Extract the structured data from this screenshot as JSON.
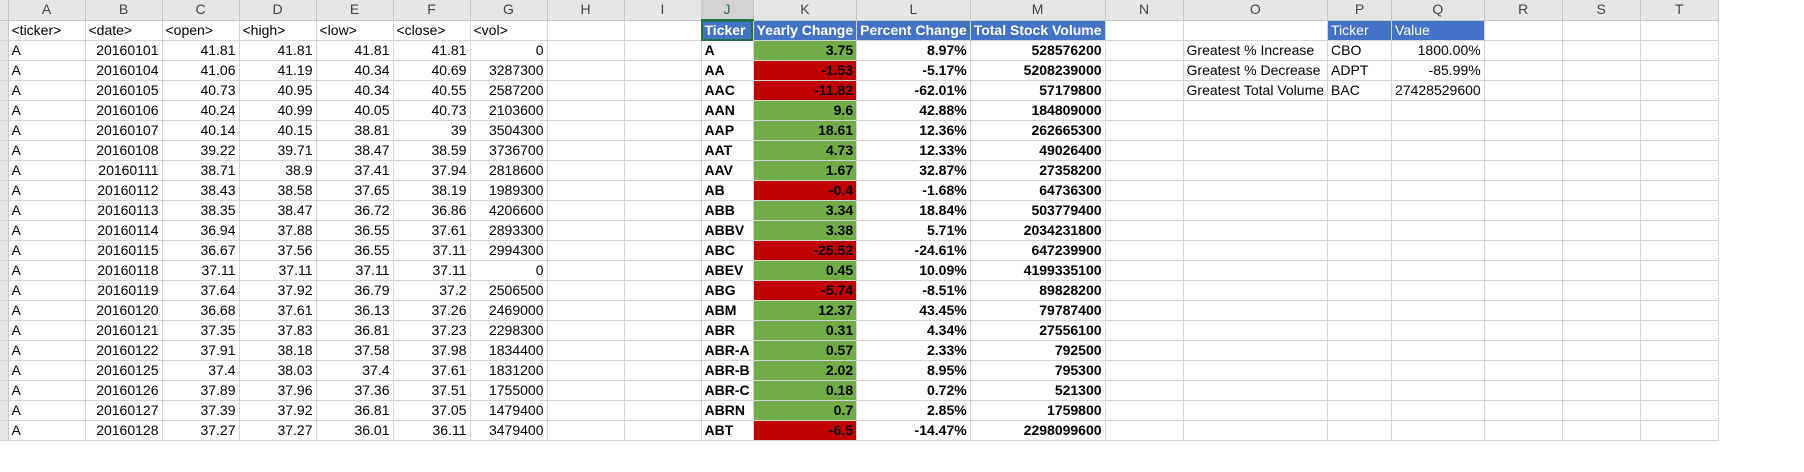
{
  "columns": [
    "A",
    "B",
    "C",
    "D",
    "E",
    "F",
    "G",
    "H",
    "I",
    "J",
    "K",
    "L",
    "M",
    "N",
    "O",
    "P",
    "Q",
    "R",
    "S",
    "T"
  ],
  "raw_headers": [
    "<ticker>",
    "<date>",
    "<open>",
    "<high>",
    "<low>",
    "<close>",
    "<vol>"
  ],
  "raw_rows": [
    [
      "A",
      "20160101",
      "41.81",
      "41.81",
      "41.81",
      "41.81",
      "0"
    ],
    [
      "A",
      "20160104",
      "41.06",
      "41.19",
      "40.34",
      "40.69",
      "3287300"
    ],
    [
      "A",
      "20160105",
      "40.73",
      "40.95",
      "40.34",
      "40.55",
      "2587200"
    ],
    [
      "A",
      "20160106",
      "40.24",
      "40.99",
      "40.05",
      "40.73",
      "2103600"
    ],
    [
      "A",
      "20160107",
      "40.14",
      "40.15",
      "38.81",
      "39",
      "3504300"
    ],
    [
      "A",
      "20160108",
      "39.22",
      "39.71",
      "38.47",
      "38.59",
      "3736700"
    ],
    [
      "A",
      "20160111",
      "38.71",
      "38.9",
      "37.41",
      "37.94",
      "2818600"
    ],
    [
      "A",
      "20160112",
      "38.43",
      "38.58",
      "37.65",
      "38.19",
      "1989300"
    ],
    [
      "A",
      "20160113",
      "38.35",
      "38.47",
      "36.72",
      "36.86",
      "4206600"
    ],
    [
      "A",
      "20160114",
      "36.94",
      "37.88",
      "36.55",
      "37.61",
      "2893300"
    ],
    [
      "A",
      "20160115",
      "36.67",
      "37.56",
      "36.55",
      "37.11",
      "2994300"
    ],
    [
      "A",
      "20160118",
      "37.11",
      "37.11",
      "37.11",
      "37.11",
      "0"
    ],
    [
      "A",
      "20160119",
      "37.64",
      "37.92",
      "36.79",
      "37.2",
      "2506500"
    ],
    [
      "A",
      "20160120",
      "36.68",
      "37.61",
      "36.13",
      "37.26",
      "2469000"
    ],
    [
      "A",
      "20160121",
      "37.35",
      "37.83",
      "36.81",
      "37.23",
      "2298300"
    ],
    [
      "A",
      "20160122",
      "37.91",
      "38.18",
      "37.58",
      "37.98",
      "1834400"
    ],
    [
      "A",
      "20160125",
      "37.4",
      "38.03",
      "37.4",
      "37.61",
      "1831200"
    ],
    [
      "A",
      "20160126",
      "37.89",
      "37.96",
      "37.36",
      "37.51",
      "1755000"
    ],
    [
      "A",
      "20160127",
      "37.39",
      "37.92",
      "36.81",
      "37.05",
      "1479400"
    ],
    [
      "A",
      "20160128",
      "37.27",
      "37.27",
      "36.01",
      "36.11",
      "3479400"
    ]
  ],
  "summary_headers": [
    "Ticker",
    "Yearly Change",
    "Percent Change",
    "Total Stock Volume"
  ],
  "summary_rows": [
    [
      "A",
      "3.75",
      "8.97%",
      "528576200"
    ],
    [
      "AA",
      "-1.53",
      "-5.17%",
      "5208239000"
    ],
    [
      "AAC",
      "-11.82",
      "-62.01%",
      "57179800"
    ],
    [
      "AAN",
      "9.6",
      "42.88%",
      "184809000"
    ],
    [
      "AAP",
      "18.61",
      "12.36%",
      "262665300"
    ],
    [
      "AAT",
      "4.73",
      "12.33%",
      "49026400"
    ],
    [
      "AAV",
      "1.67",
      "32.87%",
      "27358200"
    ],
    [
      "AB",
      "-0.4",
      "-1.68%",
      "64736300"
    ],
    [
      "ABB",
      "3.34",
      "18.84%",
      "503779400"
    ],
    [
      "ABBV",
      "3.38",
      "5.71%",
      "2034231800"
    ],
    [
      "ABC",
      "-25.52",
      "-24.61%",
      "647239900"
    ],
    [
      "ABEV",
      "0.45",
      "10.09%",
      "4199335100"
    ],
    [
      "ABG",
      "-5.74",
      "-8.51%",
      "89828200"
    ],
    [
      "ABM",
      "12.37",
      "43.45%",
      "79787400"
    ],
    [
      "ABR",
      "0.31",
      "4.34%",
      "27556100"
    ],
    [
      "ABR-A",
      "0.57",
      "2.33%",
      "792500"
    ],
    [
      "ABR-B",
      "2.02",
      "8.95%",
      "795300"
    ],
    [
      "ABR-C",
      "0.18",
      "0.72%",
      "521300"
    ],
    [
      "ABRN",
      "0.7",
      "2.85%",
      "1759800"
    ],
    [
      "ABT",
      "-6.5",
      "-14.47%",
      "2298099600"
    ]
  ],
  "greatest_headers": [
    "Ticker",
    "Value"
  ],
  "greatest_rows": [
    [
      "Greatest % Increase",
      "CBO",
      "1800.00%"
    ],
    [
      "Greatest % Decrease",
      "ADPT",
      "-85.99%"
    ],
    [
      "Greatest Total Volume",
      "BAC",
      "27428529600"
    ]
  ],
  "colors": {
    "positive": "#70ad47",
    "negative": "#c00000",
    "header": "#4472c4",
    "accent": "#217346"
  }
}
